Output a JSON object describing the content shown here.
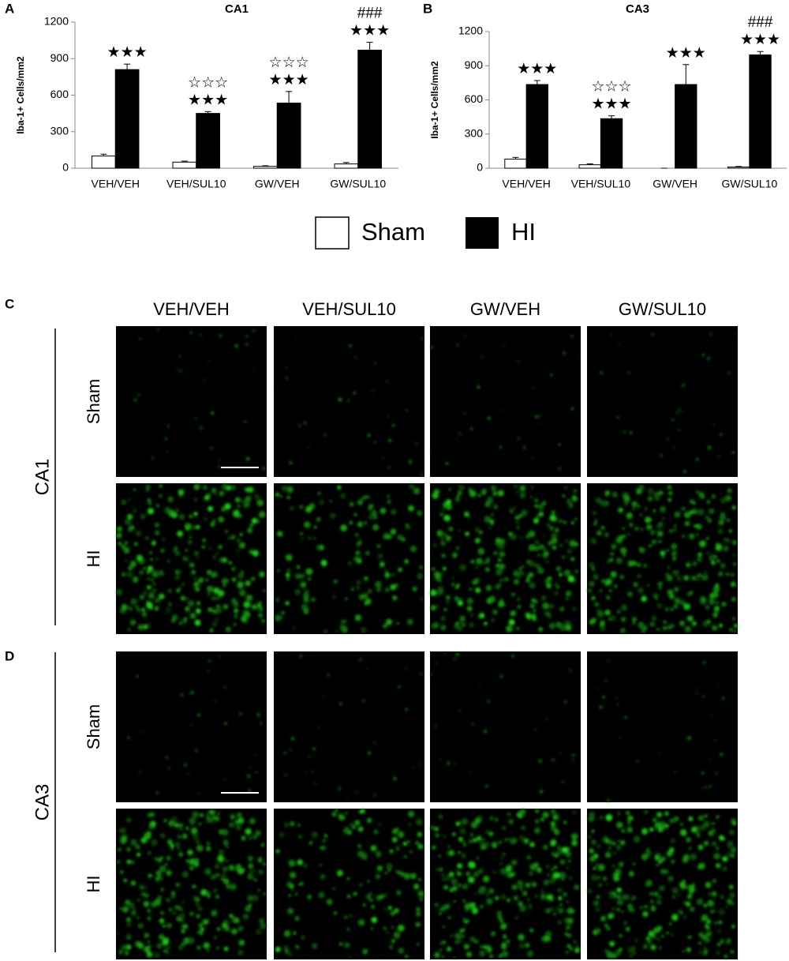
{
  "panel_labels": [
    "A",
    "B",
    "C",
    "D"
  ],
  "chart_data": [
    {
      "type": "bar",
      "title": "CA1",
      "ylabel": "Iba-1+ Cells/mm2",
      "categories": [
        "VEH/VEH",
        "VEH/SUL10",
        "GW/VEH",
        "GW/SUL10"
      ],
      "series": [
        {
          "name": "Sham",
          "color": "#ffffff",
          "values": [
            100,
            50,
            15,
            35
          ],
          "errors": [
            15,
            8,
            5,
            12
          ]
        },
        {
          "name": "HI",
          "color": "#000000",
          "values": [
            810,
            450,
            535,
            970
          ],
          "errors": [
            45,
            15,
            95,
            65
          ],
          "annotations": [
            [
              "★★★"
            ],
            [
              "☆☆☆",
              "★★★"
            ],
            [
              "☆☆☆",
              "★★★"
            ],
            [
              "###",
              "★★★"
            ]
          ]
        }
      ],
      "ylim": [
        0,
        1200
      ],
      "yticks": [
        0,
        300,
        600,
        900,
        1200
      ]
    },
    {
      "type": "bar",
      "title": "CA3",
      "ylabel": "Iba-1+ Cells/mm2",
      "categories": [
        "VEH/VEH",
        "VEH/SUL10",
        "GW/VEH",
        "GW/SUL10"
      ],
      "series": [
        {
          "name": "Sham",
          "color": "#ffffff",
          "values": [
            80,
            30,
            0,
            10
          ],
          "errors": [
            15,
            8,
            0,
            5
          ]
        },
        {
          "name": "HI",
          "color": "#000000",
          "values": [
            735,
            435,
            735,
            995
          ],
          "errors": [
            35,
            25,
            175,
            30
          ],
          "annotations": [
            [
              "★★★"
            ],
            [
              "☆☆☆",
              "★★★"
            ],
            [
              "★★★"
            ],
            [
              "###",
              "★★★"
            ]
          ]
        }
      ],
      "ylim": [
        0,
        1200
      ],
      "yticks": [
        0,
        300,
        600,
        900,
        1200
      ]
    }
  ],
  "image_columns": [
    "VEH/VEH",
    "VEH/SUL10",
    "GW/VEH",
    "GW/SUL10"
  ],
  "image_rows": [
    "Sham",
    "HI"
  ],
  "image_regions": [
    "CA1",
    "CA3"
  ]
}
